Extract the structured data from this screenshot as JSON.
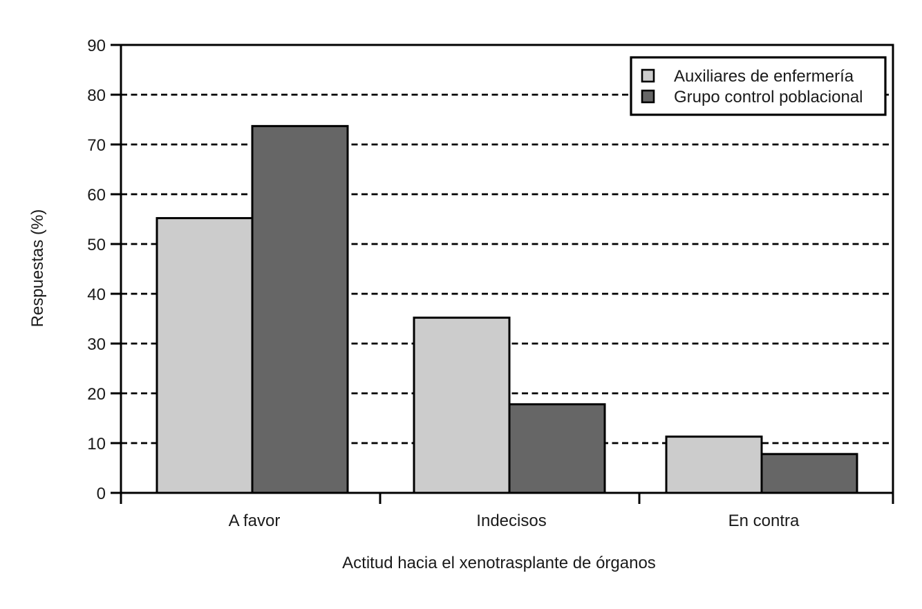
{
  "chart_data": {
    "type": "bar",
    "title": "",
    "categories": [
      "A favor",
      "Indecisos",
      "En contra"
    ],
    "series": [
      {
        "name": "Auxiliares de enfermería",
        "color": "#cccccc",
        "values": [
          55.2,
          35.2,
          11.3
        ]
      },
      {
        "name": "Grupo control poblacional",
        "color": "#666666",
        "values": [
          73.7,
          17.8,
          7.8
        ]
      }
    ],
    "xlabel": "Actitud hacia el xenotrasplante de órganos",
    "ylabel": "Respuestas (%)",
    "ylim": [
      0,
      90
    ],
    "ytick_step": 10,
    "yticks": [
      0,
      10,
      20,
      30,
      40,
      50,
      60,
      70,
      80,
      90
    ],
    "grid": "horizontal-dashed",
    "legend_position": "top-right",
    "colors": {
      "axis": "#000000",
      "text": "#1a1a1a",
      "background": "#ffffff",
      "bar_light": "#cccccc",
      "bar_dark": "#666666"
    }
  }
}
